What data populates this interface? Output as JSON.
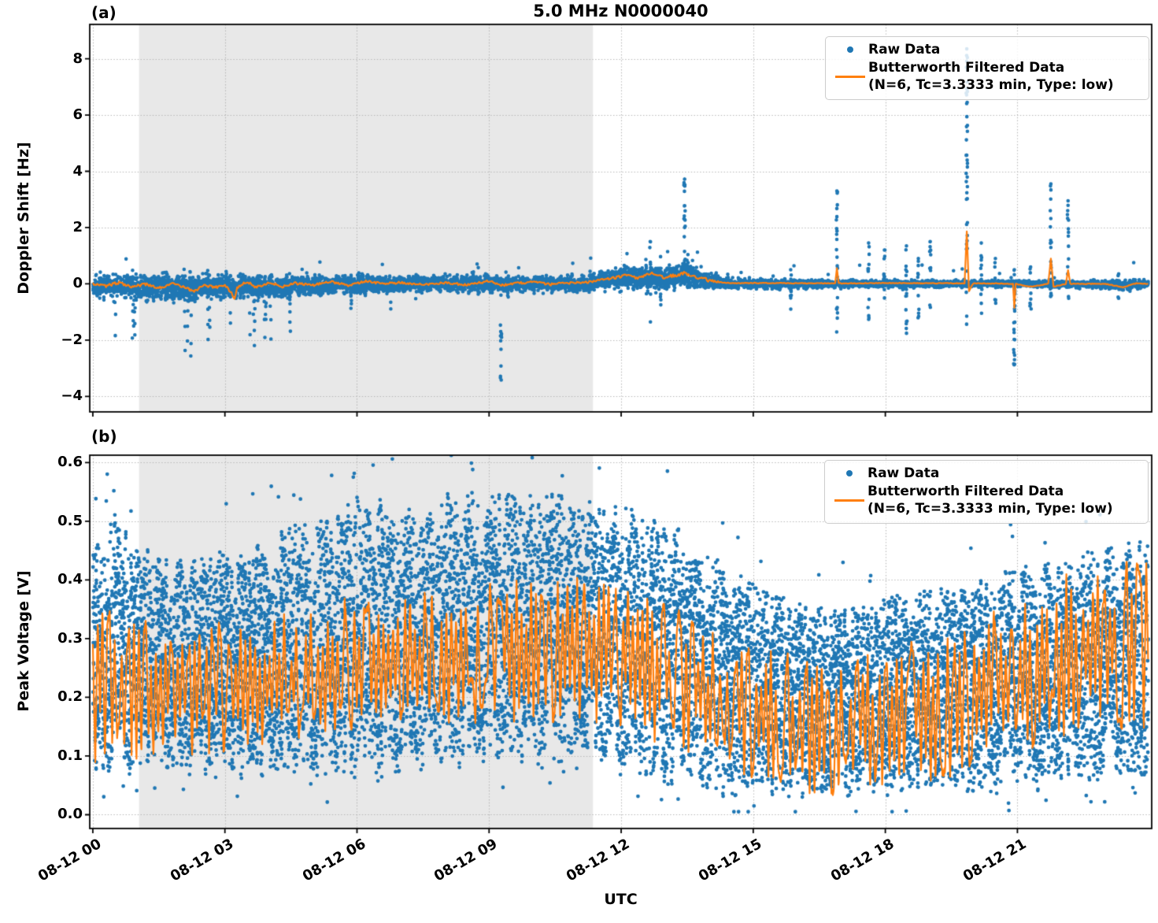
{
  "figure": {
    "title": "5.0 MHz N0000040",
    "colors": {
      "raw": "#1f77b4",
      "filtered": "#ff7f0e",
      "shading": "#e8e8e8",
      "grid": "#b5b5b5",
      "spine": "#000000",
      "background": "#ffffff"
    }
  },
  "legend": {
    "raw_label": "Raw Data",
    "filtered_label_line1": "Butterworth Filtered Data",
    "filtered_label_line2": "(N=6, Tc=3.3333 min, Type: low)"
  },
  "axes": {
    "x": {
      "label": "UTC",
      "tick_labels": [
        "08-12 00",
        "08-12 03",
        "08-12 06",
        "08-12 09",
        "08-12 12",
        "08-12 15",
        "08-12 18",
        "08-12 21"
      ],
      "tick_hours": [
        0,
        3,
        6,
        9,
        12,
        15,
        18,
        21
      ],
      "range_hours": [
        -0.07,
        24.05
      ],
      "date": "08-12"
    }
  },
  "chart_data": [
    {
      "type": "scatter",
      "panel_label": "(a)",
      "title": "5.0 MHz N0000040",
      "ylabel": "Doppler Shift [Hz]",
      "ylim": [
        -4.55,
        9.22
      ],
      "yticks": [
        8,
        6,
        4,
        2,
        0,
        -2,
        -4
      ],
      "ytick_labels": [
        "8",
        "6",
        "4",
        "2",
        "0",
        "−2",
        "−4"
      ],
      "grid": true,
      "legend_position": "upper right",
      "shaded_region_hours": [
        1.05,
        11.36
      ],
      "raw": {
        "name": "Raw Data",
        "band_t": [
          0,
          0.5,
          1,
          1.5,
          2,
          2.5,
          3,
          3.5,
          4,
          4.5,
          5,
          5.5,
          6,
          7,
          8,
          9,
          10,
          11,
          11.5,
          12,
          12.5,
          13,
          13.5,
          14,
          14.5,
          15,
          16,
          17,
          18,
          19,
          20,
          21,
          22,
          23,
          23.5,
          24
        ],
        "band_center": [
          -0.05,
          -0.1,
          -0.1,
          -0.12,
          -0.12,
          -0.1,
          -0.08,
          -0.1,
          -0.08,
          -0.05,
          -0.05,
          -0.05,
          0,
          0,
          0,
          0,
          0,
          0.02,
          0.08,
          0.2,
          0.25,
          0.25,
          0.28,
          0.12,
          0.02,
          0,
          0,
          0,
          0,
          0,
          0,
          0,
          0,
          -0.02,
          -0.05,
          -0.02
        ],
        "band_half": [
          0.4,
          0.45,
          0.5,
          0.5,
          0.5,
          0.48,
          0.45,
          0.45,
          0.4,
          0.4,
          0.38,
          0.35,
          0.33,
          0.3,
          0.3,
          0.28,
          0.28,
          0.3,
          0.35,
          0.4,
          0.45,
          0.45,
          0.42,
          0.3,
          0.2,
          0.17,
          0.15,
          0.14,
          0.13,
          0.12,
          0.12,
          0.12,
          0.12,
          0.15,
          0.2,
          0.15
        ],
        "tail_prob": [
          0.06,
          0.08,
          0.12,
          0.14,
          0.13,
          0.12,
          0.12,
          0.1,
          0.09,
          0.07,
          0.06,
          0.05,
          0.04,
          0.03,
          0.02,
          0.015,
          0.01,
          0.01,
          0.01,
          0.02,
          0.03,
          0.03,
          0.02,
          0.01,
          0.005,
          0.004,
          0.004,
          0.004,
          0.004,
          0.004,
          0.004,
          0.004,
          0.004,
          0.01,
          0.012,
          0.004
        ],
        "tail_depth": [
          1.4,
          1.8,
          2.1,
          2.4,
          2.5,
          2.4,
          2.2,
          2.1,
          1.9,
          1.7,
          1.5,
          1.3,
          1.1,
          0.9,
          0.7,
          0.6,
          0.5,
          0.5,
          0.5,
          0.6,
          0.7,
          0.7,
          0.6,
          0.4,
          0.3,
          0.3,
          0.3,
          0.3,
          0.3,
          0.3,
          0.3,
          0.3,
          0.3,
          0.4,
          0.5,
          0.3
        ]
      },
      "spikes": [
        {
          "t": 9.27,
          "lo": -3.65,
          "hi": -0.4,
          "n": 12
        },
        {
          "t": 12.66,
          "lo": -1.5,
          "hi": 1.5,
          "n": 10
        },
        {
          "t": 13.44,
          "lo": 0.5,
          "hi": 3.72,
          "n": 22
        },
        {
          "t": 15.85,
          "lo": -1.35,
          "hi": 0.5,
          "n": 10
        },
        {
          "t": 16.9,
          "lo": -1.9,
          "hi": 3.3,
          "n": 26
        },
        {
          "t": 17.62,
          "lo": -1.3,
          "hi": 1.45,
          "n": 14
        },
        {
          "t": 17.98,
          "lo": -1.2,
          "hi": 1.2,
          "n": 12
        },
        {
          "t": 18.48,
          "lo": -1.9,
          "hi": 1.35,
          "n": 16
        },
        {
          "t": 18.75,
          "lo": -1.5,
          "hi": 0.9,
          "n": 10
        },
        {
          "t": 19.02,
          "lo": -1.0,
          "hi": 1.5,
          "n": 10
        },
        {
          "t": 19.85,
          "lo": -1.6,
          "hi": 8.35,
          "n": 42
        },
        {
          "t": 20.18,
          "lo": -1.1,
          "hi": 1.45,
          "n": 12
        },
        {
          "t": 20.5,
          "lo": -0.9,
          "hi": 0.9,
          "n": 8
        },
        {
          "t": 20.93,
          "lo": -2.95,
          "hi": 0.5,
          "n": 26
        },
        {
          "t": 21.3,
          "lo": -1.3,
          "hi": 0.6,
          "n": 10
        },
        {
          "t": 21.76,
          "lo": -0.6,
          "hi": 3.55,
          "n": 22
        },
        {
          "t": 22.15,
          "lo": -0.6,
          "hi": 2.95,
          "n": 14
        },
        {
          "t": 23.3,
          "lo": -0.6,
          "hi": 0.35,
          "n": 8
        }
      ],
      "filtered": {
        "name": "Butterworth Filtered Data (N=6, Tc=3.3333 min, Type: low)",
        "kp_t": [
          0,
          0.3,
          0.6,
          0.9,
          1.2,
          1.5,
          1.8,
          2.1,
          2.3,
          2.5,
          2.8,
          3.0,
          3.22,
          3.28,
          3.5,
          3.7,
          4.0,
          4.3,
          4.6,
          5.0,
          5.4,
          5.8,
          6.2,
          6.6,
          7.0,
          7.5,
          8.0,
          8.5,
          9.0,
          9.3,
          9.6,
          10.0,
          10.4,
          10.8,
          11.2,
          11.5,
          11.8,
          12.1,
          12.4,
          12.7,
          13.0,
          13.2,
          13.45,
          13.7,
          14.0,
          14.3,
          14.6,
          15.0,
          16.0,
          16.86,
          16.9,
          16.94,
          17.5,
          18.0,
          19.0,
          19.8,
          19.85,
          19.9,
          20.0,
          20.5,
          20.9,
          20.93,
          20.96,
          21.3,
          21.7,
          21.76,
          21.82,
          22.1,
          22.15,
          22.2,
          23.0,
          23.4,
          23.7,
          24.0
        ],
        "kp_v": [
          0.02,
          -0.08,
          0.05,
          -0.1,
          -0.02,
          -0.15,
          0.0,
          -0.12,
          -0.28,
          -0.05,
          -0.12,
          -0.02,
          -0.5,
          -0.12,
          0.08,
          -0.12,
          0.05,
          -0.1,
          0.02,
          -0.05,
          0.08,
          -0.05,
          0.1,
          0.0,
          0.05,
          -0.03,
          0.04,
          -0.04,
          0.1,
          -0.05,
          0.02,
          0.06,
          -0.02,
          0.03,
          0.05,
          0.12,
          0.2,
          0.3,
          0.22,
          0.35,
          0.22,
          0.3,
          0.38,
          0.25,
          0.12,
          0.05,
          0.02,
          0.03,
          0.02,
          0.02,
          0.55,
          0.02,
          0.02,
          0.03,
          0.02,
          0.02,
          1.85,
          -0.25,
          0.02,
          0.01,
          0.0,
          -0.85,
          0.0,
          -0.1,
          0.0,
          0.9,
          -0.1,
          0.0,
          0.5,
          0.0,
          0.0,
          -0.12,
          0.02,
          0.0
        ],
        "wiggle_amp_t": [
          0,
          6,
          11.5,
          12,
          14,
          14.3,
          24
        ],
        "wiggle_amp_v": [
          0.055,
          0.04,
          0.04,
          0.06,
          0.06,
          0.013,
          0.013
        ]
      }
    },
    {
      "type": "scatter",
      "panel_label": "(b)",
      "ylabel": "Peak Voltage [V]",
      "ylim": [
        -0.0235,
        0.6125
      ],
      "yticks": [
        0.6,
        0.5,
        0.4,
        0.3,
        0.2,
        0.1,
        0.0
      ],
      "ytick_labels": [
        "0.6",
        "0.5",
        "0.4",
        "0.3",
        "0.2",
        "0.1",
        "0.0"
      ],
      "grid": true,
      "legend_position": "upper right",
      "shaded_region_hours": [
        1.05,
        11.36
      ],
      "raw": {
        "name": "Raw Data",
        "band_t": [
          0,
          0.5,
          1,
          2,
          3,
          4,
          5,
          6,
          7,
          8,
          9,
          10,
          11,
          11.5,
          12,
          12.5,
          13,
          13.5,
          14,
          14.5,
          15,
          15.5,
          16,
          17,
          18,
          19,
          20,
          20.5,
          21,
          21.5,
          22,
          22.5,
          23,
          23.5,
          24
        ],
        "band_lo": [
          0.04,
          0.05,
          0.06,
          0.06,
          0.05,
          0.05,
          0.04,
          0.04,
          0.05,
          0.06,
          0.06,
          0.06,
          0.06,
          0.06,
          0.05,
          0.04,
          0.03,
          0.03,
          0.02,
          0.02,
          0.02,
          0.02,
          0.015,
          0.015,
          0.015,
          0.015,
          0.02,
          0.02,
          0.03,
          0.03,
          0.04,
          0.04,
          0.04,
          0.05,
          0.05
        ],
        "band_hi": [
          0.5,
          0.54,
          0.47,
          0.46,
          0.47,
          0.5,
          0.53,
          0.56,
          0.55,
          0.57,
          0.58,
          0.58,
          0.56,
          0.56,
          0.55,
          0.54,
          0.53,
          0.5,
          0.46,
          0.44,
          0.42,
          0.4,
          0.38,
          0.37,
          0.39,
          0.4,
          0.42,
          0.43,
          0.44,
          0.45,
          0.46,
          0.47,
          0.48,
          0.49,
          0.5
        ]
      },
      "spikes": [],
      "filtered": {
        "name": "Butterworth Filtered Data (N=6, Tc=3.3333 min, Type: low)",
        "mid_t": [
          0,
          2,
          4,
          6,
          8,
          10,
          12,
          13,
          14,
          15,
          16,
          17,
          18,
          19,
          20,
          21,
          22,
          23,
          24
        ],
        "mid_v": [
          0.22,
          0.21,
          0.22,
          0.25,
          0.27,
          0.28,
          0.27,
          0.24,
          0.2,
          0.17,
          0.15,
          0.15,
          0.16,
          0.17,
          0.2,
          0.24,
          0.27,
          0.29,
          0.3
        ],
        "amp_v": [
          0.14,
          0.12,
          0.12,
          0.12,
          0.12,
          0.13,
          0.13,
          0.13,
          0.12,
          0.12,
          0.13,
          0.12,
          0.12,
          0.13,
          0.13,
          0.14,
          0.15,
          0.15,
          0.16
        ]
      }
    }
  ]
}
